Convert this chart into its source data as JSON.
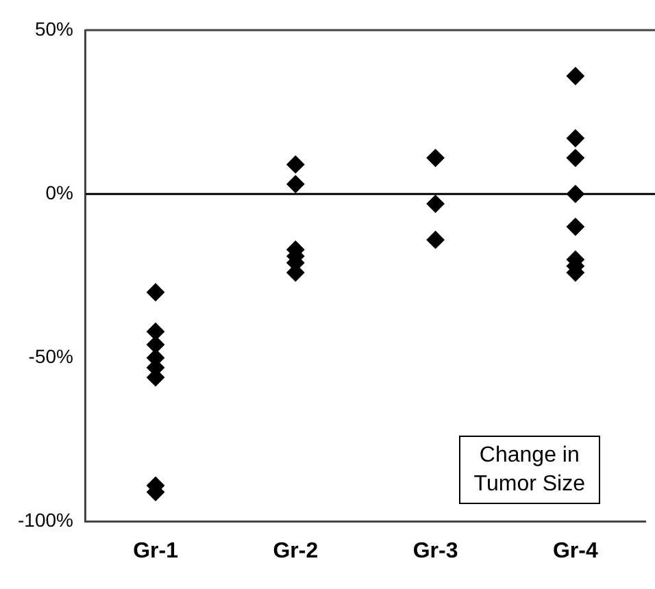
{
  "chart_data": {
    "type": "scatter",
    "categories": [
      "Gr-1",
      "Gr-2",
      "Gr-3",
      "Gr-4"
    ],
    "series": [
      {
        "color": "#000000",
        "x": [
          "Gr-1",
          "Gr-1",
          "Gr-1",
          "Gr-1",
          "Gr-1",
          "Gr-1",
          "Gr-1",
          "Gr-1",
          "Gr-2",
          "Gr-2",
          "Gr-2",
          "Gr-2",
          "Gr-2",
          "Gr-2",
          "Gr-3",
          "Gr-3",
          "Gr-3",
          "Gr-4",
          "Gr-4",
          "Gr-4",
          "Gr-4",
          "Gr-4",
          "Gr-4",
          "Gr-4",
          "Gr-4"
        ],
        "values": [
          -30,
          -42,
          -46,
          -50,
          -53,
          -56,
          -89,
          -91,
          9,
          3,
          -17,
          -19,
          -21,
          -24,
          11,
          -3,
          -14,
          36,
          17,
          11,
          0,
          -10,
          -20,
          -22,
          -24
        ]
      }
    ],
    "ylim": [
      -100,
      50
    ],
    "yticks": [
      {
        "value": -100,
        "label": "-100%"
      },
      {
        "value": -50,
        "label": "-50%"
      },
      {
        "value": 0,
        "label": "0%"
      },
      {
        "value": 50,
        "label": "50%"
      }
    ],
    "ref_lines": [
      {
        "axis": "y",
        "value": 0,
        "color": "#000000"
      }
    ],
    "marker": "diamond",
    "grid": false,
    "legend": false,
    "annotations": [
      "Change in\nTumor Size"
    ]
  }
}
